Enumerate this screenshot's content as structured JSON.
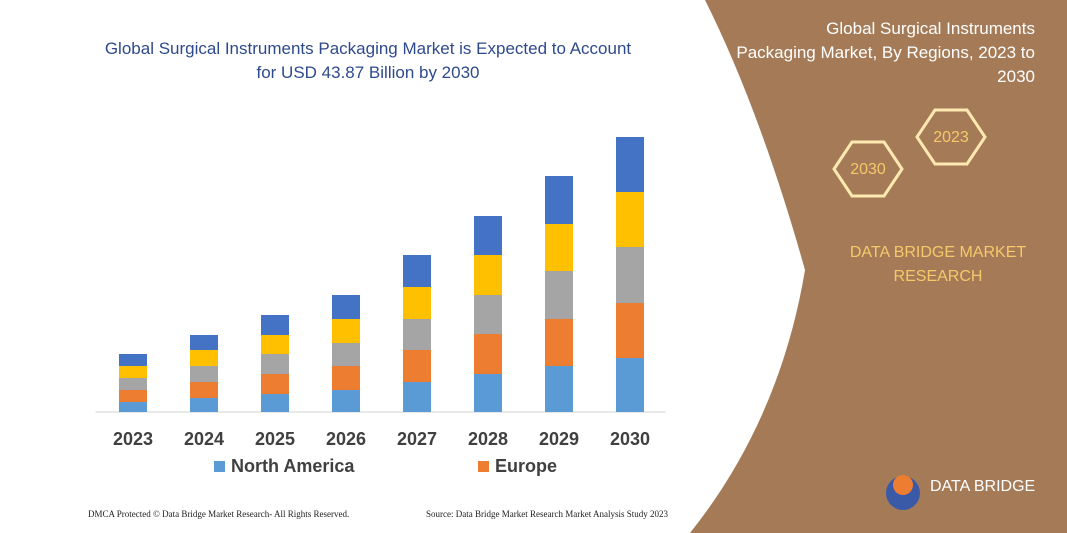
{
  "chart_data": {
    "type": "bar",
    "stacked": true,
    "title": "Global Surgical Instruments Packaging Market is Expected to Account for USD 43.87 Billion by 2030",
    "categories": [
      "2023",
      "2024",
      "2025",
      "2026",
      "2027",
      "2028",
      "2029",
      "2030"
    ],
    "series": [
      {
        "name": "North America",
        "color": "#5b9bd5",
        "values": [
          10,
          14,
          18,
          22,
          30,
          38,
          46,
          54
        ]
      },
      {
        "name": "Europe",
        "color": "#ed7d31",
        "values": [
          12,
          16,
          20,
          24,
          32,
          40,
          47,
          55
        ]
      },
      {
        "color": "#a5a5a5",
        "values": [
          12,
          16,
          20,
          23,
          31,
          39,
          48,
          56
        ]
      },
      {
        "color": "#ffc000",
        "values": [
          12,
          16,
          19,
          24,
          32,
          40,
          47,
          55
        ]
      },
      {
        "color": "#4472c4",
        "values": [
          12,
          15,
          20,
          24,
          32,
          39,
          48,
          55
        ]
      }
    ],
    "ylim": [
      0,
      280
    ]
  },
  "side_panel": {
    "title": "Global Surgical Instruments Packaging Market, By Regions, 2023 to 2030",
    "hex_start": "2023",
    "hex_end": "2030",
    "brand": "DATA BRIDGE MARKET RESEARCH",
    "logo": "DATA BRIDGE"
  },
  "footer": {
    "left": "DMCA Protected © Data Bridge Market Research- All Rights Reserved.",
    "right": "Source: Data Bridge Market Research Market Analysis Study 2023"
  }
}
